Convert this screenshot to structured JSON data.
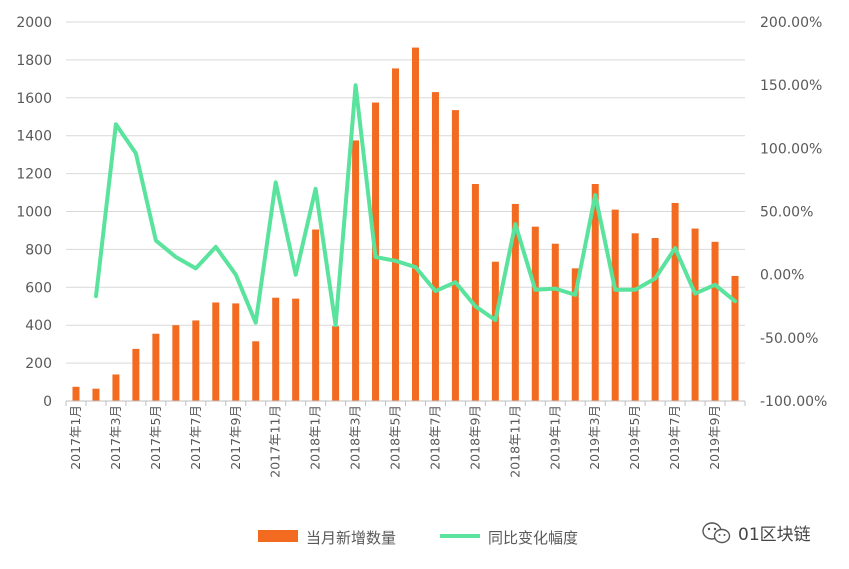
{
  "chart_data": {
    "type": "bar",
    "categories": [
      "2017年1月",
      "2017年2月",
      "2017年3月",
      "2017年4月",
      "2017年5月",
      "2017年6月",
      "2017年7月",
      "2017年8月",
      "2017年9月",
      "2017年10月",
      "2017年11月",
      "2017年12月",
      "2018年1月",
      "2018年2月",
      "2018年3月",
      "2018年4月",
      "2018年5月",
      "2018年6月",
      "2018年7月",
      "2018年8月",
      "2018年9月",
      "2018年10月",
      "2018年11月",
      "2018年12月",
      "2019年1月",
      "2019年2月",
      "2019年3月",
      "2019年4月",
      "2019年5月",
      "2019年6月",
      "2019年7月",
      "2019年8月",
      "2019年9月",
      "2019年10月"
    ],
    "x_tick_labels": [
      "2017年1月",
      "2017年3月",
      "2017年5月",
      "2017年7月",
      "2017年9月",
      "2017年11月",
      "2018年1月",
      "2018年3月",
      "2018年5月",
      "2018年7月",
      "2018年9月",
      "2018年11月",
      "2019年1月",
      "2019年3月",
      "2019年5月",
      "2019年7月",
      "2019年9月"
    ],
    "series": [
      {
        "name": "当月新增数量",
        "type": "bar",
        "axis": "left",
        "color": "#F26B21",
        "values": [
          75,
          65,
          140,
          275,
          355,
          400,
          425,
          520,
          515,
          315,
          545,
          540,
          905,
          395,
          1375,
          1575,
          1755,
          1865,
          1630,
          1535,
          1145,
          735,
          1040,
          920,
          830,
          700,
          1145,
          1010,
          885,
          860,
          1045,
          910,
          840,
          660
        ]
      },
      {
        "name": "同比变化幅度",
        "type": "line",
        "axis": "right",
        "color": "#59E39C",
        "values": [
          null,
          -17,
          119,
          96,
          27,
          14,
          5,
          22,
          0,
          -38,
          73,
          0,
          68,
          -40,
          150,
          14,
          11,
          6,
          -13,
          -6,
          -25,
          -36,
          40,
          -12,
          -11,
          -16,
          63,
          -12,
          -12,
          -3,
          21,
          -15,
          -8,
          -21
        ]
      }
    ],
    "y_left": {
      "min": 0,
      "max": 2000,
      "ticks": [
        "0",
        "200",
        "400",
        "600",
        "800",
        "1000",
        "1200",
        "1400",
        "1600",
        "1800",
        "2000"
      ]
    },
    "y_right": {
      "min": -100,
      "max": 200,
      "ticks": [
        "-100.00%",
        "-50.00%",
        "0.00%",
        "50.00%",
        "100.00%",
        "150.00%",
        "200.00%"
      ]
    },
    "grid": true,
    "legend_position": "bottom"
  },
  "watermark": {
    "text": "01区块链",
    "icon": "wechat-icon"
  }
}
